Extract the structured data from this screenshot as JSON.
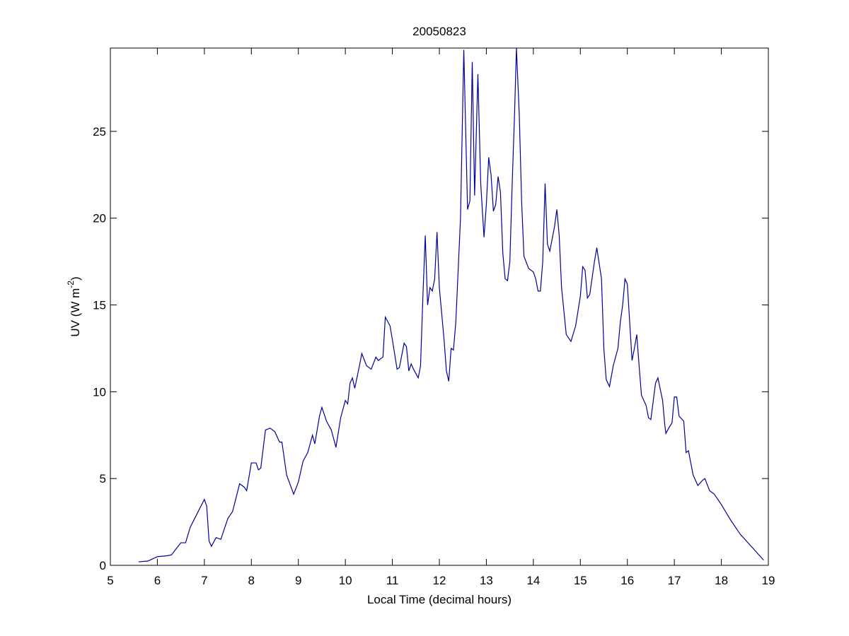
{
  "chart_data": {
    "type": "line",
    "title": "20050823",
    "xlabel": "Local Time (decimal hours)",
    "ylabel": [
      "UV (W m",
      "-2",
      ")"
    ],
    "xlim": [
      5,
      19
    ],
    "xticks": [
      5,
      6,
      7,
      8,
      9,
      10,
      11,
      12,
      13,
      14,
      15,
      16,
      17,
      18,
      19
    ],
    "ylim": [
      0,
      29.8
    ],
    "yticks": [
      0,
      5,
      10,
      15,
      20,
      25
    ],
    "grid": false,
    "series": [
      {
        "color": "#00009c",
        "x": [
          5.6,
          5.8,
          6.0,
          6.2,
          6.3,
          6.5,
          6.6,
          6.7,
          6.85,
          7.0,
          7.05,
          7.1,
          7.15,
          7.25,
          7.35,
          7.5,
          7.6,
          7.75,
          7.85,
          7.9,
          8.0,
          8.1,
          8.15,
          8.2,
          8.3,
          8.4,
          8.5,
          8.6,
          8.65,
          8.75,
          8.9,
          9.0,
          9.1,
          9.2,
          9.3,
          9.35,
          9.45,
          9.5,
          9.6,
          9.7,
          9.8,
          9.9,
          10.0,
          10.05,
          10.1,
          10.15,
          10.2,
          10.3,
          10.35,
          10.45,
          10.55,
          10.65,
          10.7,
          10.8,
          10.85,
          10.95,
          11.0,
          11.1,
          11.15,
          11.25,
          11.3,
          11.35,
          11.4,
          11.45,
          11.55,
          11.6,
          11.65,
          11.7,
          11.75,
          11.8,
          11.85,
          11.9,
          11.95,
          12.0,
          12.1,
          12.15,
          12.2,
          12.25,
          12.3,
          12.35,
          12.45,
          12.52,
          12.6,
          12.65,
          12.7,
          12.75,
          12.82,
          12.88,
          12.95,
          13.0,
          13.05,
          13.1,
          13.15,
          13.2,
          13.25,
          13.3,
          13.35,
          13.4,
          13.45,
          13.5,
          13.55,
          13.6,
          13.64,
          13.7,
          13.75,
          13.8,
          13.9,
          14.0,
          14.05,
          14.1,
          14.15,
          14.2,
          14.25,
          14.3,
          14.35,
          14.45,
          14.5,
          14.55,
          14.6,
          14.7,
          14.8,
          14.9,
          15.0,
          15.05,
          15.1,
          15.15,
          15.2,
          15.3,
          15.35,
          15.45,
          15.5,
          15.55,
          15.62,
          15.7,
          15.8,
          15.85,
          15.9,
          15.95,
          16.0,
          16.05,
          16.1,
          16.15,
          16.2,
          16.25,
          16.3,
          16.4,
          16.45,
          16.5,
          16.6,
          16.65,
          16.75,
          16.8,
          16.82,
          16.9,
          16.95,
          17.0,
          17.05,
          17.1,
          17.2,
          17.25,
          17.3,
          17.4,
          17.5,
          17.6,
          17.65,
          17.75,
          17.85,
          18.0,
          18.2,
          18.4,
          18.6,
          18.8,
          18.9
        ],
        "values": [
          0.2,
          0.25,
          0.5,
          0.55,
          0.6,
          1.3,
          1.3,
          2.2,
          3.0,
          3.8,
          3.4,
          1.4,
          1.1,
          1.6,
          1.5,
          2.7,
          3.1,
          4.7,
          4.5,
          4.3,
          5.9,
          5.9,
          5.5,
          5.6,
          7.8,
          7.9,
          7.7,
          7.1,
          7.1,
          5.2,
          4.1,
          4.8,
          6.0,
          6.5,
          7.5,
          7.0,
          8.6,
          9.1,
          8.3,
          7.8,
          6.8,
          8.5,
          9.5,
          9.3,
          10.5,
          10.8,
          10.2,
          11.5,
          12.2,
          11.5,
          11.3,
          12.0,
          11.8,
          12.0,
          14.3,
          13.8,
          13.0,
          11.3,
          11.4,
          12.8,
          12.6,
          11.2,
          11.6,
          11.3,
          10.8,
          11.5,
          15.5,
          19.0,
          15.0,
          16.0,
          15.8,
          16.5,
          19.2,
          16.0,
          13.0,
          11.2,
          10.6,
          12.5,
          12.4,
          14.0,
          20.0,
          29.7,
          20.5,
          21.0,
          29.0,
          21.3,
          28.3,
          22.0,
          18.9,
          20.8,
          23.5,
          22.5,
          20.4,
          20.8,
          22.4,
          21.5,
          18.0,
          16.5,
          16.4,
          17.5,
          22.0,
          26.0,
          29.8,
          26.0,
          21.0,
          17.8,
          17.1,
          16.9,
          16.5,
          15.8,
          15.8,
          17.5,
          22.0,
          18.5,
          18.1,
          19.5,
          20.5,
          19.0,
          16.0,
          13.3,
          12.9,
          13.8,
          15.5,
          17.2,
          17.0,
          15.4,
          15.6,
          17.5,
          18.3,
          16.5,
          12.5,
          10.7,
          10.3,
          11.5,
          12.5,
          14.0,
          15.0,
          16.5,
          16.2,
          14.0,
          11.8,
          12.5,
          13.3,
          11.5,
          9.8,
          9.2,
          8.5,
          8.4,
          10.5,
          10.8,
          9.5,
          8.0,
          7.6,
          8.0,
          8.2,
          9.7,
          9.7,
          8.6,
          8.3,
          6.5,
          6.6,
          5.2,
          4.6,
          4.9,
          5.0,
          4.3,
          4.1,
          3.5,
          2.6,
          1.8,
          1.2,
          0.6,
          0.3
        ]
      }
    ]
  }
}
